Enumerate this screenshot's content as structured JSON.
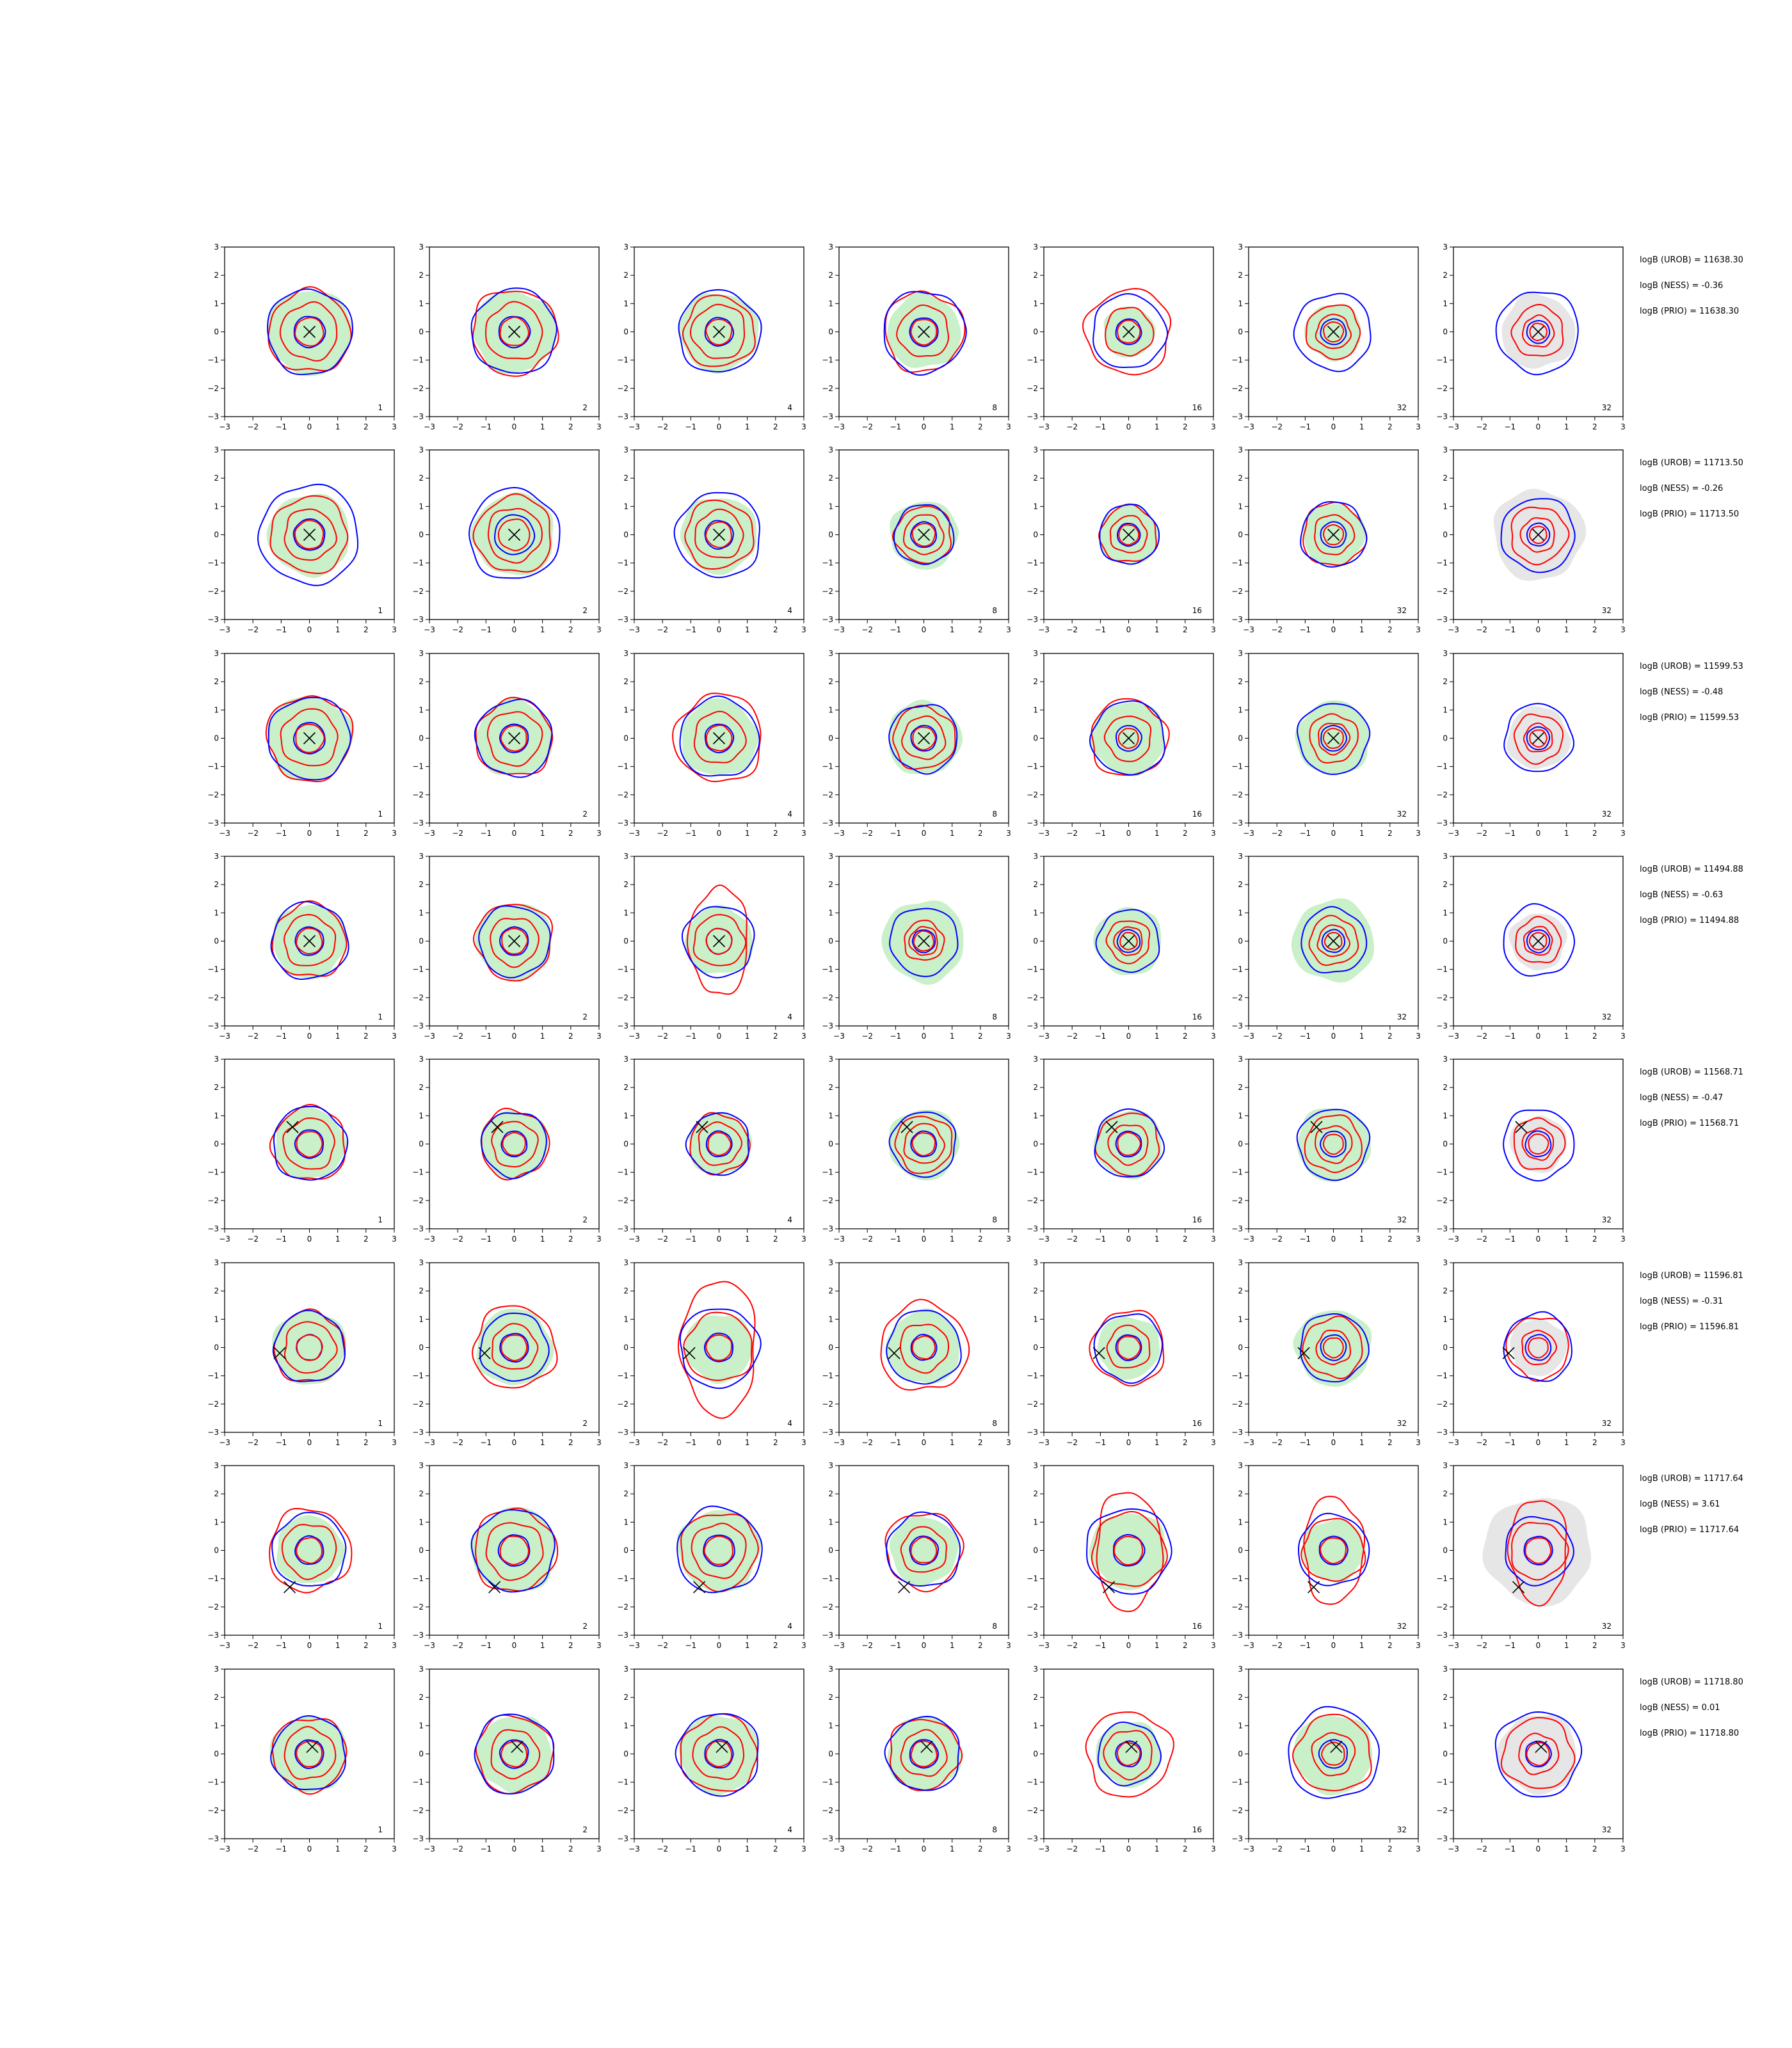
{
  "chart_data": {
    "type": "contour-grid",
    "rows": 8,
    "columns": 7,
    "xlim": [
      -3,
      3
    ],
    "ylim": [
      -3,
      3
    ],
    "xticks": [
      "−3",
      "−2",
      "−1",
      "0",
      "1",
      "2",
      "3"
    ],
    "yticks": [
      "3",
      "2",
      "1",
      "0",
      "−1",
      "−2",
      "−3"
    ],
    "column_labels": [
      "1",
      "2",
      "4",
      "8",
      "16",
      "32",
      "32"
    ],
    "colors": {
      "blue_contour": "#0000ff",
      "red_contour": "#ff0000",
      "green_fill": "#c9f0c9",
      "grey_fill": "#e6e6e6",
      "marker": "#000000"
    },
    "rows_data": [
      {
        "logB_lines": [
          "logB (UROB) = 11638.30",
          "logB (NESS) = -0.36",
          "logB (PRIO) = 11638.30"
        ],
        "marker": [
          0.0,
          0.0
        ],
        "panels": [
          {
            "green": 1.5,
            "blue_outer": 1.5,
            "red_outer": 1.45,
            "red_mid": 1.0,
            "blue_inner": 0.55,
            "red_inner": 0.5,
            "grey": 0
          },
          {
            "green": 1.45,
            "blue_outer": 1.5,
            "red_outer": 1.5,
            "red_mid": 1.0,
            "blue_inner": 0.55,
            "red_inner": 0.5,
            "grey": 0
          },
          {
            "green": 1.4,
            "blue_outer": 1.45,
            "red_outer": 1.25,
            "red_mid": 0.95,
            "blue_inner": 0.5,
            "red_inner": 0.45,
            "grey": 0
          },
          {
            "green": 1.3,
            "blue_outer": 1.45,
            "red_outer": 1.4,
            "red_mid": 0.9,
            "blue_inner": 0.5,
            "red_inner": 0.45,
            "grey": 0
          },
          {
            "green": 0.9,
            "blue_outer": 1.3,
            "red_outer": 1.5,
            "red_mid": 0.85,
            "blue_inner": 0.45,
            "red_inner": 0.4,
            "grey": 0
          },
          {
            "green": 1.0,
            "blue_outer": 1.35,
            "red_outer": 0.95,
            "red_mid": 0.6,
            "blue_inner": 0.45,
            "red_inner": 0.35,
            "grey": 0
          },
          {
            "green": 0,
            "blue_outer": 1.45,
            "red_outer": 0.9,
            "red_mid": 0.55,
            "blue_inner": 0.4,
            "red_inner": 0.3,
            "grey": 1.3
          }
        ]
      },
      {
        "logB_lines": [
          "logB (UROB) = 11713.50",
          "logB (NESS) = -0.26",
          "logB (PRIO) = 11713.50"
        ],
        "marker": [
          0.0,
          0.0
        ],
        "panels": [
          {
            "green": 1.45,
            "blue_outer": 1.75,
            "red_outer": 1.35,
            "red_mid": 0.9,
            "blue_inner": 0.55,
            "red_inner": 0.5,
            "grey": 0
          },
          {
            "green": 1.45,
            "blue_outer": 1.6,
            "red_outer": 1.35,
            "red_mid": 0.95,
            "blue_inner": 0.7,
            "red_inner": 0.55,
            "grey": 0
          },
          {
            "green": 1.35,
            "blue_outer": 1.5,
            "red_outer": 1.2,
            "red_mid": 0.85,
            "blue_inner": 0.5,
            "red_inner": 0.45,
            "grey": 0
          },
          {
            "green": 1.2,
            "blue_outer": 1.05,
            "red_outer": 1.0,
            "red_mid": 0.7,
            "blue_inner": 0.45,
            "red_inner": 0.4,
            "grey": 0
          },
          {
            "green": 1.05,
            "blue_outer": 1.05,
            "red_outer": 1.0,
            "red_mid": 0.65,
            "blue_inner": 0.4,
            "red_inner": 0.35,
            "grey": 0
          },
          {
            "green": 1.1,
            "blue_outer": 1.15,
            "red_outer": 1.1,
            "red_mid": 0.7,
            "blue_inner": 0.45,
            "red_inner": 0.35,
            "grey": 0
          },
          {
            "green": 0,
            "blue_outer": 1.3,
            "red_outer": 1.0,
            "red_mid": 0.6,
            "blue_inner": 0.4,
            "red_inner": 0.3,
            "grey": 1.6
          }
        ]
      },
      {
        "logB_lines": [
          "logB (UROB) = 11599.53",
          "logB (NESS) = -0.48",
          "logB (PRIO) = 11599.53"
        ],
        "marker": [
          0.0,
          0.0
        ],
        "panels": [
          {
            "green": 1.5,
            "blue_outer": 1.45,
            "red_outer": 1.5,
            "red_mid": 1.0,
            "blue_inner": 0.55,
            "red_inner": 0.5,
            "grey": 0
          },
          {
            "green": 1.35,
            "blue_outer": 1.35,
            "red_outer": 1.35,
            "red_mid": 0.95,
            "blue_inner": 0.5,
            "red_inner": 0.45,
            "grey": 0
          },
          {
            "green": 1.35,
            "blue_outer": 1.4,
            "red_outer": 1.55,
            "red_mid": 0.9,
            "blue_inner": 0.5,
            "red_inner": 0.45,
            "grey": 0
          },
          {
            "green": 1.3,
            "blue_outer": 1.2,
            "red_outer": 1.1,
            "red_mid": 0.75,
            "blue_inner": 0.45,
            "red_inner": 0.4,
            "grey": 0
          },
          {
            "green": 1.3,
            "blue_outer": 1.3,
            "red_outer": 1.35,
            "red_mid": 0.8,
            "blue_inner": 0.45,
            "red_inner": 0.35,
            "grey": 0
          },
          {
            "green": 1.3,
            "blue_outer": 1.25,
            "red_outer": 0.85,
            "red_mid": 0.55,
            "blue_inner": 0.45,
            "red_inner": 0.35,
            "grey": 0
          },
          {
            "green": 0,
            "blue_outer": 1.2,
            "red_outer": 0.85,
            "red_mid": 0.5,
            "blue_inner": 0.4,
            "red_inner": 0.3,
            "grey": 1.1
          }
        ]
      },
      {
        "logB_lines": [
          "logB (UROB) = 11494.88",
          "logB (NESS) = -0.63",
          "logB (PRIO) = 11494.88"
        ],
        "marker": [
          0.0,
          0.0
        ],
        "panels": [
          {
            "green": 1.3,
            "blue_outer": 1.35,
            "red_outer": 1.3,
            "red_mid": 0.9,
            "blue_inner": 0.5,
            "red_inner": 0.45,
            "grey": 0
          },
          {
            "green": 1.35,
            "blue_outer": 1.25,
            "red_outer": 1.35,
            "red_mid": 0.85,
            "blue_inner": 0.5,
            "red_inner": 0.45,
            "grey": 0
          },
          {
            "green": 1.2,
            "blue_outer": 1.25,
            "red_outer": 1.9,
            "red_mid": 0.9,
            "blue_inner": 0.45,
            "red_inner": 0.45,
            "grey": 0
          },
          {
            "green": 1.45,
            "blue_outer": 1.2,
            "red_outer": 0.7,
            "red_mid": 0.5,
            "blue_inner": 0.4,
            "red_inner": 0.35,
            "grey": 0
          },
          {
            "green": 1.2,
            "blue_outer": 1.1,
            "red_outer": 0.75,
            "red_mid": 0.5,
            "blue_inner": 0.4,
            "red_inner": 0.3,
            "grey": 0
          },
          {
            "green": 1.45,
            "blue_outer": 1.15,
            "red_outer": 0.85,
            "red_mid": 0.55,
            "blue_inner": 0.4,
            "red_inner": 0.3,
            "grey": 0
          },
          {
            "green": 0,
            "blue_outer": 1.25,
            "red_outer": 0.8,
            "red_mid": 0.5,
            "blue_inner": 0.4,
            "red_inner": 0.3,
            "grey": 1.0
          }
        ]
      },
      {
        "logB_lines": [
          "logB (UROB) = 11568.71",
          "logB (NESS) = -0.47",
          "logB (PRIO) = 11568.71"
        ],
        "marker": [
          -0.6,
          0.6
        ],
        "panels": [
          {
            "green": 1.25,
            "blue_outer": 1.3,
            "red_outer": 1.3,
            "red_mid": 0.9,
            "blue_inner": 0.5,
            "red_inner": 0.45,
            "grey": 0
          },
          {
            "green": 1.2,
            "blue_outer": 1.15,
            "red_outer": 1.2,
            "red_mid": 0.8,
            "blue_inner": 0.45,
            "red_inner": 0.4,
            "grey": 0
          },
          {
            "green": 1.1,
            "blue_outer": 1.1,
            "red_outer": 1.05,
            "red_mid": 0.75,
            "blue_inner": 0.45,
            "red_inner": 0.4,
            "grey": 0
          },
          {
            "green": 1.25,
            "blue_outer": 1.15,
            "red_outer": 1.0,
            "red_mid": 0.7,
            "blue_inner": 0.45,
            "red_inner": 0.4,
            "grey": 0
          },
          {
            "green": 1.2,
            "blue_outer": 1.2,
            "red_outer": 1.1,
            "red_mid": 0.7,
            "blue_inner": 0.45,
            "red_inner": 0.4,
            "grey": 0
          },
          {
            "green": 1.3,
            "blue_outer": 1.25,
            "red_outer": 1.0,
            "red_mid": 0.65,
            "blue_inner": 0.45,
            "red_inner": 0.35,
            "grey": 0
          },
          {
            "green": 0,
            "blue_outer": 1.25,
            "red_outer": 0.9,
            "red_mid": 0.55,
            "blue_inner": 0.45,
            "red_inner": 0.35,
            "grey": 1.0
          }
        ]
      },
      {
        "logB_lines": [
          "logB (UROB) = 11596.81",
          "logB (NESS) = -0.31",
          "logB (PRIO) = 11596.81"
        ],
        "marker": [
          -1.05,
          -0.2
        ],
        "panels": [
          {
            "green": 1.3,
            "blue_outer": 1.25,
            "red_outer": 1.25,
            "red_mid": 0.9,
            "blue_inner": 0.45,
            "red_inner": 0.45,
            "grey": 0
          },
          {
            "green": 1.35,
            "blue_outer": 1.2,
            "red_outer": 1.45,
            "red_mid": 0.8,
            "blue_inner": 0.5,
            "red_inner": 0.45,
            "grey": 0
          },
          {
            "green": 1.2,
            "blue_outer": 1.4,
            "red_outer": 2.4,
            "red_mid": 1.2,
            "blue_inner": 0.5,
            "red_inner": 0.45,
            "grey": 0
          },
          {
            "green": 1.3,
            "blue_outer": 1.3,
            "red_outer": 1.55,
            "red_mid": 0.85,
            "blue_inner": 0.45,
            "red_inner": 0.4,
            "grey": 0
          },
          {
            "green": 1.1,
            "blue_outer": 1.2,
            "red_outer": 1.3,
            "red_mid": 0.75,
            "blue_inner": 0.45,
            "red_inner": 0.4,
            "grey": 0
          },
          {
            "green": 1.35,
            "blue_outer": 1.2,
            "red_outer": 1.05,
            "red_mid": 0.6,
            "blue_inner": 0.45,
            "red_inner": 0.35,
            "grey": 0
          },
          {
            "green": 0,
            "blue_outer": 1.2,
            "red_outer": 1.1,
            "red_mid": 0.6,
            "blue_inner": 0.45,
            "red_inner": 0.35,
            "grey": 1.0
          }
        ]
      },
      {
        "logB_lines": [
          "logB (UROB) = 11717.64",
          "logB (NESS) = 3.61",
          "logB (PRIO) = 11717.64"
        ],
        "marker": [
          -0.7,
          -1.3
        ],
        "panels": [
          {
            "green": 1.2,
            "blue_outer": 1.3,
            "red_outer": 1.45,
            "red_mid": 0.95,
            "blue_inner": 0.5,
            "red_inner": 0.45,
            "grey": 0
          },
          {
            "green": 1.5,
            "blue_outer": 1.45,
            "red_outer": 1.45,
            "red_mid": 1.0,
            "blue_inner": 0.55,
            "red_inner": 0.5,
            "grey": 0
          },
          {
            "green": 1.45,
            "blue_outer": 1.5,
            "red_outer": 1.35,
            "red_mid": 0.95,
            "blue_inner": 0.55,
            "red_inner": 0.5,
            "grey": 0
          },
          {
            "green": 1.2,
            "blue_outer": 1.3,
            "red_outer": 1.35,
            "red_mid": 0.8,
            "blue_inner": 0.5,
            "red_inner": 0.45,
            "grey": 0
          },
          {
            "green": 1.35,
            "blue_outer": 1.5,
            "red_outer": 2.1,
            "red_mid": 1.3,
            "blue_inner": 0.55,
            "red_inner": 0.5,
            "grey": 0
          },
          {
            "green": 1.1,
            "blue_outer": 1.25,
            "red_outer": 1.9,
            "red_mid": 1.1,
            "blue_inner": 0.5,
            "red_inner": 0.45,
            "grey": 0
          },
          {
            "green": 0,
            "blue_outer": 1.2,
            "red_outer": 1.85,
            "red_mid": 1.0,
            "blue_inner": 0.5,
            "red_inner": 0.45,
            "grey": 1.9
          }
        ]
      },
      {
        "logB_lines": [
          "logB (UROB) = 11718.80",
          "logB (NESS) = 0.01",
          "logB (PRIO) = 11718.80"
        ],
        "marker": [
          0.1,
          0.25
        ],
        "panels": [
          {
            "green": 1.35,
            "blue_outer": 1.3,
            "red_outer": 1.3,
            "red_mid": 0.9,
            "blue_inner": 0.5,
            "red_inner": 0.45,
            "grey": 0
          },
          {
            "green": 1.35,
            "blue_outer": 1.4,
            "red_outer": 1.35,
            "red_mid": 0.85,
            "blue_inner": 0.5,
            "red_inner": 0.45,
            "grey": 0
          },
          {
            "green": 1.4,
            "blue_outer": 1.45,
            "red_outer": 1.35,
            "red_mid": 0.9,
            "blue_inner": 0.5,
            "red_inner": 0.45,
            "grey": 0
          },
          {
            "green": 1.3,
            "blue_outer": 1.3,
            "red_outer": 1.25,
            "red_mid": 0.8,
            "blue_inner": 0.5,
            "red_inner": 0.45,
            "grey": 0
          },
          {
            "green": 1.15,
            "blue_outer": 1.1,
            "red_outer": 1.5,
            "red_mid": 0.85,
            "blue_inner": 0.45,
            "red_inner": 0.4,
            "grey": 0
          },
          {
            "green": 1.4,
            "blue_outer": 1.6,
            "red_outer": 1.35,
            "red_mid": 0.75,
            "blue_inner": 0.5,
            "red_inner": 0.4,
            "grey": 0
          },
          {
            "green": 0,
            "blue_outer": 1.5,
            "red_outer": 1.25,
            "red_mid": 0.7,
            "blue_inner": 0.45,
            "red_inner": 0.4,
            "grey": 1.4
          }
        ]
      }
    ]
  }
}
